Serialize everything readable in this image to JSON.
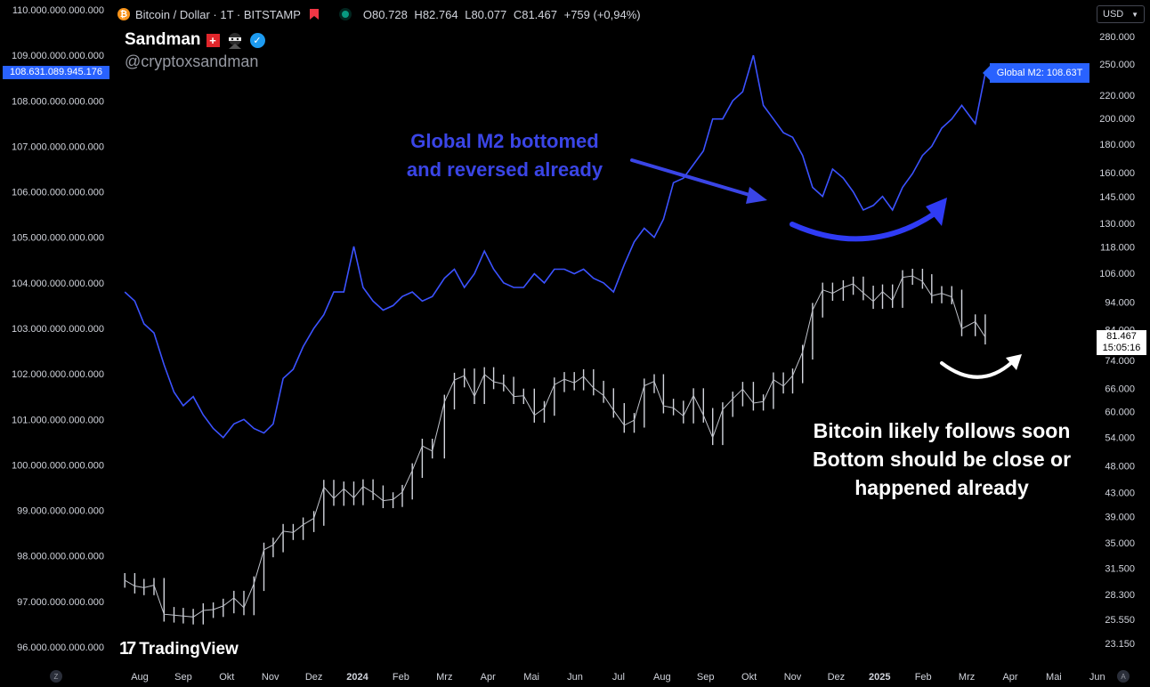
{
  "header": {
    "symbol": "Bitcoin / Dollar · 1T · BITSTAMP",
    "ohlc": [
      {
        "key": "O",
        "value": "80.728"
      },
      {
        "key": "H",
        "value": "82.764"
      },
      {
        "key": "L",
        "value": "80.077"
      },
      {
        "key": "C",
        "value": "81.467"
      }
    ],
    "change": "+759 (+0,94%)",
    "currency": "USD"
  },
  "author": {
    "name": "Sandman",
    "handle": "@cryptoxsandman"
  },
  "annotations": {
    "m2_lines": [
      "Global M2 bottomed",
      "and reversed already"
    ],
    "btc_lines": [
      "Bitcoin likely follows soon",
      "Bottom should be close or",
      "happened already"
    ]
  },
  "labels": {
    "m2_left_value": "108.631.089.945.176",
    "m2_tag": "Global M2: 108.63T",
    "last_price": "81.467",
    "countdown": "15:05:16",
    "brand": "TradingView",
    "corner_left": "Z",
    "corner_right": "A"
  },
  "colors": {
    "m2": "#3b52ff",
    "btc": "#d1d4dc",
    "m2_annotation": "#3a45e6",
    "tag": "#2962ff",
    "background": "#000000"
  },
  "chart_data": {
    "type": "line",
    "x_ticks": [
      "Aug",
      "Sep",
      "Okt",
      "Nov",
      "Dez",
      "2024",
      "Feb",
      "Mrz",
      "Apr",
      "Mai",
      "Jun",
      "Jul",
      "Aug",
      "Sep",
      "Okt",
      "Nov",
      "Dez",
      "2025",
      "Feb",
      "Mrz",
      "Apr",
      "Mai",
      "Jun"
    ],
    "left_axis": {
      "ticks": [
        "110.000.000.000.000",
        "109.000.000.000.000",
        "108.000.000.000.000",
        "107.000.000.000.000",
        "106.000.000.000.000",
        "105.000.000.000.000",
        "104.000.000.000.000",
        "103.000.000.000.000",
        "102.000.000.000.000",
        "101.000.000.000.000",
        "100.000.000.000.000",
        "99.000.000.000.000",
        "98.000.000.000.000",
        "97.000.000.000.000",
        "96.000.000.000.000"
      ],
      "range_trillions": [
        96,
        110
      ]
    },
    "right_axis": {
      "scale": "log",
      "ticks": [
        "280.000",
        "250.000",
        "220.000",
        "200.000",
        "180.000",
        "160.000",
        "145.000",
        "130.000",
        "118.000",
        "106.000",
        "94.000",
        "84.000",
        "74.000",
        "66.000",
        "60.000",
        "54.000",
        "48.000",
        "43.000",
        "39.000",
        "35.000",
        "31.500",
        "28.300",
        "25.550",
        "23.150"
      ]
    },
    "series": [
      {
        "name": "Global M2",
        "axis": "left",
        "points": [
          [
            "2023-07-21",
            103.8
          ],
          [
            "2023-07-28",
            103.6
          ],
          [
            "2023-08-04",
            103.1
          ],
          [
            "2023-08-11",
            102.9
          ],
          [
            "2023-08-18",
            102.2
          ],
          [
            "2023-08-25",
            101.6
          ],
          [
            "2023-09-01",
            101.3
          ],
          [
            "2023-09-08",
            101.5
          ],
          [
            "2023-09-15",
            101.1
          ],
          [
            "2023-09-22",
            100.8
          ],
          [
            "2023-09-29",
            100.6
          ],
          [
            "2023-10-06",
            100.9
          ],
          [
            "2023-10-13",
            101.0
          ],
          [
            "2023-10-20",
            100.8
          ],
          [
            "2023-10-27",
            100.7
          ],
          [
            "2023-11-03",
            100.9
          ],
          [
            "2023-11-10",
            101.9
          ],
          [
            "2023-11-17",
            102.1
          ],
          [
            "2023-11-24",
            102.6
          ],
          [
            "2023-12-01",
            103.0
          ],
          [
            "2023-12-08",
            103.3
          ],
          [
            "2023-12-15",
            103.8
          ],
          [
            "2023-12-22",
            103.8
          ],
          [
            "2023-12-29",
            104.8
          ],
          [
            "2024-01-05",
            103.9
          ],
          [
            "2024-01-12",
            103.6
          ],
          [
            "2024-01-19",
            103.4
          ],
          [
            "2024-01-26",
            103.5
          ],
          [
            "2024-02-02",
            103.7
          ],
          [
            "2024-02-09",
            103.8
          ],
          [
            "2024-02-16",
            103.6
          ],
          [
            "2024-02-23",
            103.7
          ],
          [
            "2024-03-01",
            104.1
          ],
          [
            "2024-03-08",
            104.3
          ],
          [
            "2024-03-15",
            103.9
          ],
          [
            "2024-03-22",
            104.2
          ],
          [
            "2024-03-29",
            104.7
          ],
          [
            "2024-04-05",
            104.3
          ],
          [
            "2024-04-12",
            104.0
          ],
          [
            "2024-04-19",
            103.9
          ],
          [
            "2024-04-26",
            103.9
          ],
          [
            "2024-05-03",
            104.2
          ],
          [
            "2024-05-10",
            104.0
          ],
          [
            "2024-05-17",
            104.3
          ],
          [
            "2024-05-24",
            104.3
          ],
          [
            "2024-05-31",
            104.2
          ],
          [
            "2024-06-07",
            104.3
          ],
          [
            "2024-06-14",
            104.1
          ],
          [
            "2024-06-21",
            104.0
          ],
          [
            "2024-06-28",
            103.8
          ],
          [
            "2024-07-05",
            104.4
          ],
          [
            "2024-07-12",
            104.9
          ],
          [
            "2024-07-19",
            105.2
          ],
          [
            "2024-07-26",
            105.0
          ],
          [
            "2024-08-02",
            105.4
          ],
          [
            "2024-08-09",
            106.2
          ],
          [
            "2024-08-16",
            106.3
          ],
          [
            "2024-08-23",
            106.6
          ],
          [
            "2024-08-30",
            106.9
          ],
          [
            "2024-09-06",
            107.6
          ],
          [
            "2024-09-13",
            107.6
          ],
          [
            "2024-09-20",
            108.0
          ],
          [
            "2024-09-27",
            108.2
          ],
          [
            "2024-10-04",
            109.0
          ],
          [
            "2024-10-11",
            107.9
          ],
          [
            "2024-10-18",
            107.6
          ],
          [
            "2024-10-25",
            107.3
          ],
          [
            "2024-11-01",
            107.2
          ],
          [
            "2024-11-08",
            106.8
          ],
          [
            "2024-11-15",
            106.1
          ],
          [
            "2024-11-22",
            105.9
          ],
          [
            "2024-11-29",
            106.5
          ],
          [
            "2024-12-06",
            106.3
          ],
          [
            "2024-12-13",
            106.0
          ],
          [
            "2024-12-20",
            105.6
          ],
          [
            "2024-12-27",
            105.7
          ],
          [
            "2025-01-03",
            105.9
          ],
          [
            "2025-01-10",
            105.6
          ],
          [
            "2025-01-17",
            106.1
          ],
          [
            "2025-01-24",
            106.4
          ],
          [
            "2025-01-31",
            106.8
          ],
          [
            "2025-02-07",
            107.0
          ],
          [
            "2025-02-14",
            107.4
          ],
          [
            "2025-02-21",
            107.6
          ],
          [
            "2025-02-28",
            107.9
          ],
          [
            "2025-03-07",
            107.5
          ],
          [
            "2025-03-14",
            108.6
          ]
        ]
      },
      {
        "name": "Bitcoin / Dollar",
        "axis": "right",
        "points": [
          [
            "2023-07-21",
            30000
          ],
          [
            "2023-07-28",
            29300
          ],
          [
            "2023-08-04",
            29100
          ],
          [
            "2023-08-11",
            29400
          ],
          [
            "2023-08-18",
            26100
          ],
          [
            "2023-08-25",
            26000
          ],
          [
            "2023-09-01",
            25900
          ],
          [
            "2023-09-08",
            25800
          ],
          [
            "2023-09-15",
            26500
          ],
          [
            "2023-09-22",
            26600
          ],
          [
            "2023-09-29",
            27000
          ],
          [
            "2023-10-06",
            27900
          ],
          [
            "2023-10-13",
            26800
          ],
          [
            "2023-10-20",
            29600
          ],
          [
            "2023-10-27",
            34000
          ],
          [
            "2023-11-03",
            34700
          ],
          [
            "2023-11-10",
            36700
          ],
          [
            "2023-11-17",
            36500
          ],
          [
            "2023-11-24",
            37700
          ],
          [
            "2023-12-01",
            38700
          ],
          [
            "2023-12-08",
            44000
          ],
          [
            "2023-12-15",
            42000
          ],
          [
            "2023-12-22",
            43700
          ],
          [
            "2023-12-29",
            42100
          ],
          [
            "2024-01-05",
            44100
          ],
          [
            "2024-01-12",
            43000
          ],
          [
            "2024-01-19",
            41600
          ],
          [
            "2024-01-26",
            41800
          ],
          [
            "2024-02-02",
            43100
          ],
          [
            "2024-02-09",
            47100
          ],
          [
            "2024-02-16",
            52100
          ],
          [
            "2024-02-23",
            51000
          ],
          [
            "2024-03-01",
            62400
          ],
          [
            "2024-03-08",
            68300
          ],
          [
            "2024-03-15",
            69500
          ],
          [
            "2024-03-22",
            63800
          ],
          [
            "2024-03-29",
            69900
          ],
          [
            "2024-04-05",
            67800
          ],
          [
            "2024-04-12",
            67200
          ],
          [
            "2024-04-19",
            63800
          ],
          [
            "2024-04-26",
            64000
          ],
          [
            "2024-05-03",
            59100
          ],
          [
            "2024-05-10",
            60800
          ],
          [
            "2024-05-17",
            67000
          ],
          [
            "2024-05-24",
            68500
          ],
          [
            "2024-05-31",
            67500
          ],
          [
            "2024-06-07",
            69300
          ],
          [
            "2024-06-14",
            66100
          ],
          [
            "2024-06-21",
            64100
          ],
          [
            "2024-06-28",
            60300
          ],
          [
            "2024-07-05",
            56700
          ],
          [
            "2024-07-12",
            57900
          ],
          [
            "2024-07-19",
            66700
          ],
          [
            "2024-07-26",
            67900
          ],
          [
            "2024-08-02",
            61400
          ],
          [
            "2024-08-09",
            60900
          ],
          [
            "2024-08-16",
            58900
          ],
          [
            "2024-08-23",
            64100
          ],
          [
            "2024-08-30",
            59100
          ],
          [
            "2024-09-06",
            53900
          ],
          [
            "2024-09-13",
            60500
          ],
          [
            "2024-09-20",
            63200
          ],
          [
            "2024-09-27",
            65800
          ],
          [
            "2024-10-04",
            62100
          ],
          [
            "2024-10-11",
            62500
          ],
          [
            "2024-10-18",
            68400
          ],
          [
            "2024-10-25",
            66600
          ],
          [
            "2024-11-01",
            69500
          ],
          [
            "2024-11-08",
            76600
          ],
          [
            "2024-11-15",
            91000
          ],
          [
            "2024-11-22",
            98900
          ],
          [
            "2024-11-29",
            97500
          ],
          [
            "2024-12-06",
            99900
          ],
          [
            "2024-12-13",
            101400
          ],
          [
            "2024-12-20",
            97700
          ],
          [
            "2024-12-27",
            94300
          ],
          [
            "2025-01-03",
            98200
          ],
          [
            "2025-01-10",
            94700
          ],
          [
            "2025-01-17",
            104100
          ],
          [
            "2025-01-24",
            104700
          ],
          [
            "2025-01-31",
            102400
          ],
          [
            "2025-02-07",
            96500
          ],
          [
            "2025-02-14",
            97500
          ],
          [
            "2025-02-21",
            96100
          ],
          [
            "2025-02-28",
            84300
          ],
          [
            "2025-03-07",
            86800
          ],
          [
            "2025-03-14",
            81467
          ]
        ]
      }
    ]
  }
}
